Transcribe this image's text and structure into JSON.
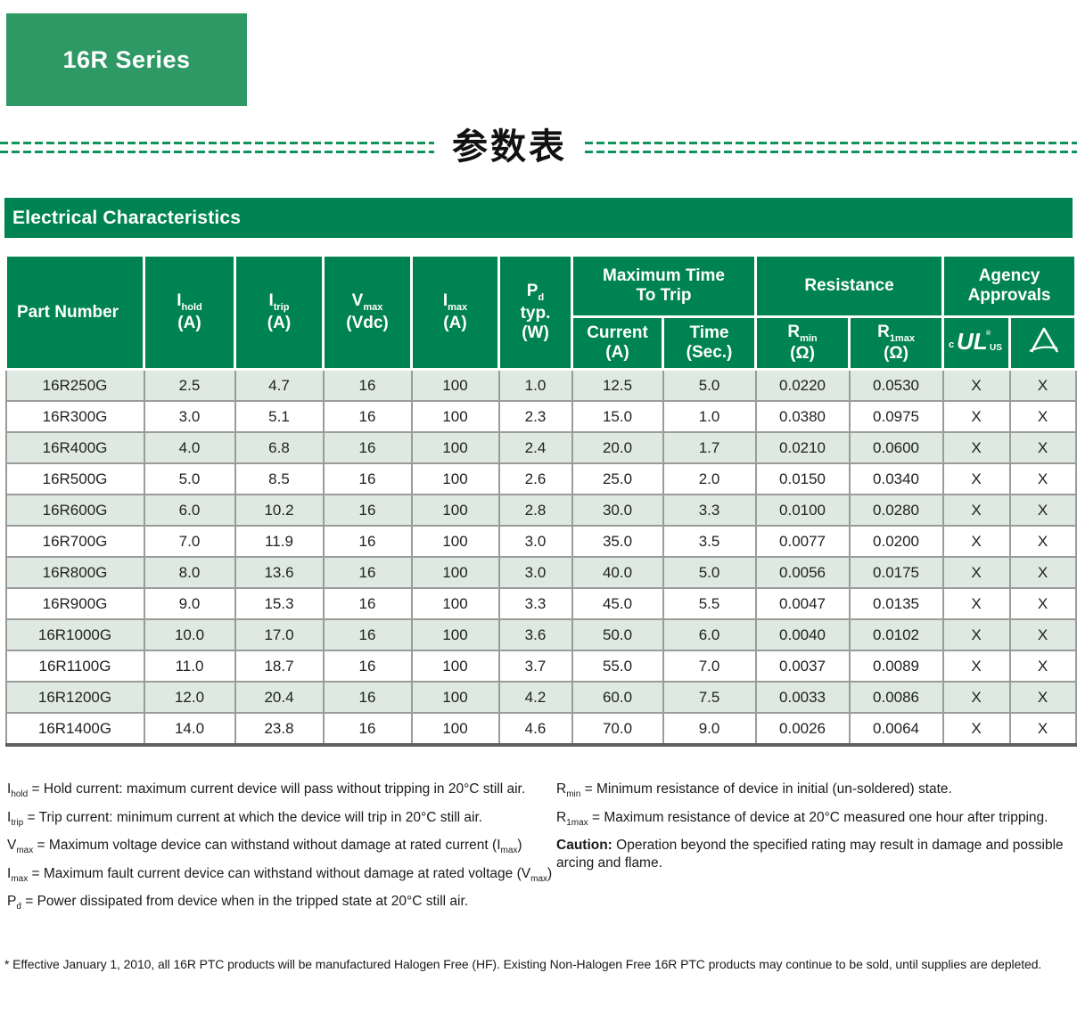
{
  "page": {
    "series_label": "16R Series",
    "section_title_cn": "参数表",
    "table_title": "Electrical Characteristics"
  },
  "colors": {
    "banner_green": "#2F9966",
    "header_green": "#008352",
    "row_tint": "#DDE9E1",
    "dash_green": "#0E935A"
  },
  "table": {
    "header": {
      "part_number": "Part Number",
      "cols": [
        {
          "sym": "I",
          "sub": "hold",
          "unit": "(A)"
        },
        {
          "sym": "I",
          "sub": "trip",
          "unit": "(A)"
        },
        {
          "sym": "V",
          "sub": "max",
          "unit": "(Vdc)"
        },
        {
          "sym": "I",
          "sub": "max",
          "unit": "(A)"
        },
        {
          "sym": "P",
          "sub": "d",
          "line2": "typ.",
          "unit": "(W)"
        }
      ],
      "groups": [
        {
          "line1": "Maximum Time",
          "line2": "To Trip"
        },
        {
          "label": "Resistance"
        },
        {
          "line1": "Agency",
          "line2": "Approvals"
        }
      ],
      "subcols": [
        {
          "line1": "Current",
          "line2": "(A)"
        },
        {
          "line1": "Time",
          "line2": "(Sec.)"
        },
        {
          "sym": "R",
          "sub": "min",
          "unit": "(Ω)"
        },
        {
          "sym": "R",
          "sub": "1max",
          "unit": "(Ω)"
        },
        {
          "icon": "cULus-certification-mark"
        },
        {
          "icon": "triangle-certification-mark"
        }
      ]
    },
    "rows": [
      {
        "part": "16R250G",
        "values": [
          "2.5",
          "4.7",
          "16",
          "100",
          "1.0",
          "12.5",
          "5.0",
          "0.0220",
          "0.0530"
        ],
        "approvals": [
          "X",
          "X"
        ]
      },
      {
        "part": "16R300G",
        "values": [
          "3.0",
          "5.1",
          "16",
          "100",
          "2.3",
          "15.0",
          "1.0",
          "0.0380",
          "0.0975"
        ],
        "approvals": [
          "X",
          "X"
        ]
      },
      {
        "part": "16R400G",
        "values": [
          "4.0",
          "6.8",
          "16",
          "100",
          "2.4",
          "20.0",
          "1.7",
          "0.0210",
          "0.0600"
        ],
        "approvals": [
          "X",
          "X"
        ]
      },
      {
        "part": "16R500G",
        "values": [
          "5.0",
          "8.5",
          "16",
          "100",
          "2.6",
          "25.0",
          "2.0",
          "0.0150",
          "0.0340"
        ],
        "approvals": [
          "X",
          "X"
        ]
      },
      {
        "part": "16R600G",
        "values": [
          "6.0",
          "10.2",
          "16",
          "100",
          "2.8",
          "30.0",
          "3.3",
          "0.0100",
          "0.0280"
        ],
        "approvals": [
          "X",
          "X"
        ]
      },
      {
        "part": "16R700G",
        "values": [
          "7.0",
          "11.9",
          "16",
          "100",
          "3.0",
          "35.0",
          "3.5",
          "0.0077",
          "0.0200"
        ],
        "approvals": [
          "X",
          "X"
        ]
      },
      {
        "part": "16R800G",
        "values": [
          "8.0",
          "13.6",
          "16",
          "100",
          "3.0",
          "40.0",
          "5.0",
          "0.0056",
          "0.0175"
        ],
        "approvals": [
          "X",
          "X"
        ]
      },
      {
        "part": "16R900G",
        "values": [
          "9.0",
          "15.3",
          "16",
          "100",
          "3.3",
          "45.0",
          "5.5",
          "0.0047",
          "0.0135"
        ],
        "approvals": [
          "X",
          "X"
        ]
      },
      {
        "part": "16R1000G",
        "values": [
          "10.0",
          "17.0",
          "16",
          "100",
          "3.6",
          "50.0",
          "6.0",
          "0.0040",
          "0.0102"
        ],
        "approvals": [
          "X",
          "X"
        ]
      },
      {
        "part": "16R1100G",
        "values": [
          "11.0",
          "18.7",
          "16",
          "100",
          "3.7",
          "55.0",
          "7.0",
          "0.0037",
          "0.0089"
        ],
        "approvals": [
          "X",
          "X"
        ]
      },
      {
        "part": "16R1200G",
        "values": [
          "12.0",
          "20.4",
          "16",
          "100",
          "4.2",
          "60.0",
          "7.5",
          "0.0033",
          "0.0086"
        ],
        "approvals": [
          "X",
          "X"
        ]
      },
      {
        "part": "16R1400G",
        "values": [
          "14.0",
          "23.8",
          "16",
          "100",
          "4.6",
          "70.0",
          "9.0",
          "0.0026",
          "0.0064"
        ],
        "approvals": [
          "X",
          "X"
        ]
      }
    ]
  },
  "footnotes_left": [
    [
      {
        "t": "I"
      },
      {
        "t": "hold",
        "style": "sub"
      },
      {
        "t": " = Hold current: maximum current device will pass without tripping in 20°C still air."
      }
    ],
    [
      {
        "t": "I"
      },
      {
        "t": "trip",
        "style": "sub"
      },
      {
        "t": " = Trip current: minimum current at which the device will trip in 20°C still air."
      }
    ],
    [
      {
        "t": "V"
      },
      {
        "t": "max",
        "style": "sub"
      },
      {
        "t": " = Maximum voltage device can withstand without damage at rated current (I"
      },
      {
        "t": "max",
        "style": "sub"
      },
      {
        "t": ")"
      }
    ],
    [
      {
        "t": "I"
      },
      {
        "t": "max",
        "style": "sub"
      },
      {
        "t": " = Maximum fault current device can withstand without damage at rated voltage (V"
      },
      {
        "t": "max",
        "style": "sub"
      },
      {
        "t": ")"
      }
    ],
    [
      {
        "t": "P"
      },
      {
        "t": "d",
        "style": "sub"
      },
      {
        "t": " = Power dissipated from device when in the tripped state at 20°C still air."
      }
    ]
  ],
  "footnotes_right": [
    [
      {
        "t": "R"
      },
      {
        "t": "min",
        "style": "sub"
      },
      {
        "t": " = Minimum resistance of device in initial (un-soldered) state."
      }
    ],
    [
      {
        "t": "R"
      },
      {
        "t": "1max",
        "style": "sub"
      },
      {
        "t": " = Maximum resistance of device at 20°C measured one hour after tripping."
      }
    ],
    [
      {
        "t": "Caution:",
        "style": "bold"
      },
      {
        "t": " Operation beyond the specified rating may result in damage and possible arcing and flame."
      }
    ]
  ],
  "bottom_note": "* Effective January 1, 2010, all 16R PTC products will be manufactured Halogen Free (HF). Existing Non-Halogen Free 16R PTC products may continue to be sold, until supplies are depleted."
}
